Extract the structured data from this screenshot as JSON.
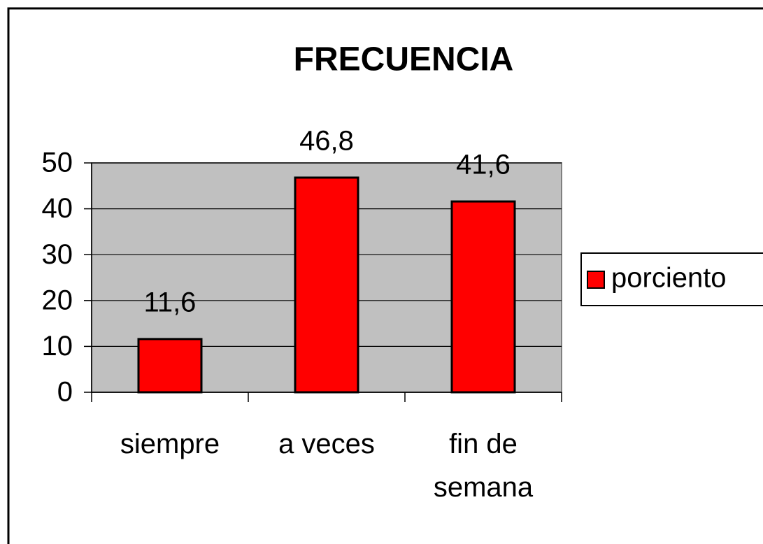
{
  "chart_data": {
    "type": "bar",
    "title": "FRECUENCIA",
    "categories": [
      "siempre",
      "a veces",
      "fin de semana"
    ],
    "series": [
      {
        "name": "porciento",
        "color": "#ff0000",
        "values": [
          11.6,
          46.8,
          41.6
        ],
        "value_labels": [
          "11,6",
          "46,8",
          "41,6"
        ]
      }
    ],
    "ylim": [
      0,
      50
    ],
    "yticks": [
      0,
      10,
      20,
      30,
      40,
      50
    ],
    "grid": true,
    "legend": "right"
  }
}
